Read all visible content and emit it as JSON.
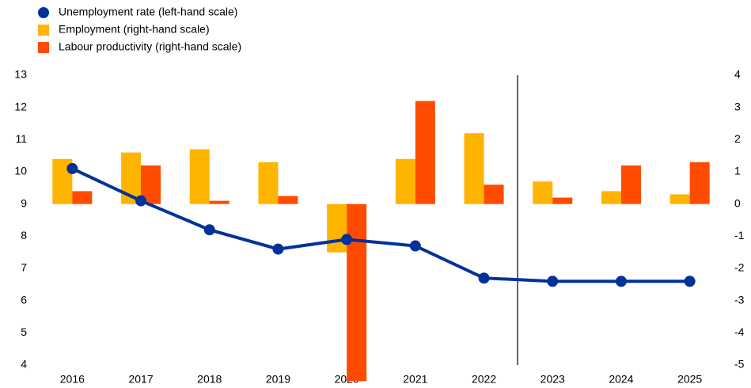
{
  "chart_data": {
    "type": "bar_line",
    "categories": [
      "2016",
      "2017",
      "2018",
      "2019",
      "2020",
      "2021",
      "2022",
      "2023",
      "2024",
      "2025"
    ],
    "series": [
      {
        "name": "Unemployment rate (left-hand scale)",
        "color": "#003299",
        "kind": "line",
        "axis": "y",
        "values": [
          10.1,
          9.1,
          8.2,
          7.6,
          7.9,
          7.7,
          6.7,
          6.6,
          6.6,
          6.6
        ]
      },
      {
        "name": "Employment (right-hand scale)",
        "color": "#ffb400",
        "kind": "bar",
        "axis": "y2",
        "values": [
          1.4,
          1.6,
          1.7,
          1.3,
          -1.5,
          1.4,
          2.2,
          0.7,
          0.4,
          0.3
        ]
      },
      {
        "name": "Labour productivity (right-hand scale)",
        "color": "#ff4b00",
        "kind": "bar",
        "axis": "y2",
        "values": [
          0.4,
          1.2,
          0.1,
          0.25,
          -5.5,
          3.2,
          0.6,
          0.2,
          1.2,
          1.3
        ]
      }
    ],
    "ylim": [
      4,
      13
    ],
    "yticks": [
      4,
      5,
      6,
      7,
      8,
      9,
      10,
      11,
      12,
      13
    ],
    "y2lim": [
      -5,
      4
    ],
    "y2ticks": [
      -5,
      -4,
      -3,
      -2,
      -1,
      0,
      1,
      2,
      3,
      4
    ],
    "grid": false,
    "legend": "top-left"
  }
}
